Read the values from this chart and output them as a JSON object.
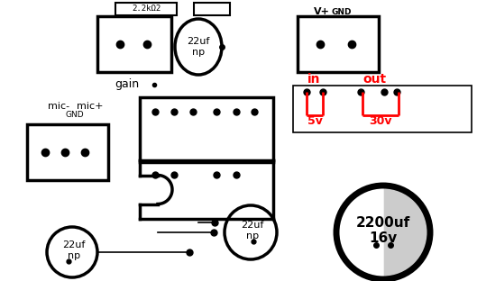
{
  "bg_color": "#ffffff",
  "black": "#000000",
  "red": "#ff0000",
  "gray": "#cccccc",
  "figsize": [
    5.29,
    3.12
  ],
  "dpi": 100,
  "components": {
    "resistor_label": "2.2kΩ2",
    "cap1_label": "22uf\nnp",
    "cap2_label": "22uf\nnp",
    "cap3_label": "22uf\nnp",
    "big_cap_label": "2200uf\n16v",
    "gain_label": "gain",
    "mic_minus": "mic-",
    "mic_plus": "mic+",
    "gnd_label": "GND",
    "vplus_label": "V+",
    "gnd2_label": "GND",
    "in_label": "in",
    "out_label": "out",
    "v5_label": "5v",
    "v30_label": "30v"
  }
}
